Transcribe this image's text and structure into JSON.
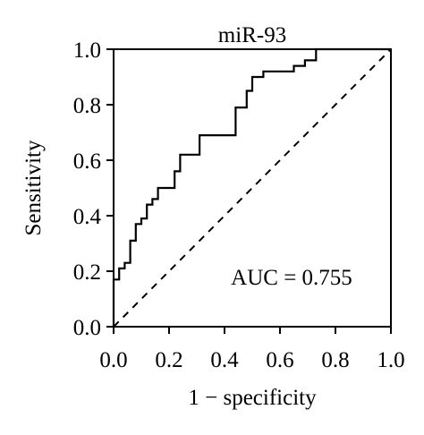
{
  "chart_data": {
    "type": "line",
    "title": "miR-93",
    "xlabel": "1 − specificity",
    "ylabel": "Sensitivity",
    "xlim": [
      0,
      1
    ],
    "ylim": [
      0,
      1
    ],
    "x_ticks": [
      "0.0",
      "0.2",
      "0.4",
      "0.6",
      "0.8",
      "1.0"
    ],
    "y_ticks": [
      "0.0",
      "0.2",
      "0.4",
      "0.6",
      "0.8",
      "1.0"
    ],
    "grid": false,
    "annotation": "AUC = 0.755",
    "series": [
      {
        "line_style": "solid",
        "color": "#000000",
        "points": [
          [
            0.0,
            0.0
          ],
          [
            0.0,
            0.17
          ],
          [
            0.02,
            0.17
          ],
          [
            0.02,
            0.21
          ],
          [
            0.04,
            0.21
          ],
          [
            0.04,
            0.23
          ],
          [
            0.06,
            0.23
          ],
          [
            0.06,
            0.31
          ],
          [
            0.08,
            0.31
          ],
          [
            0.08,
            0.37
          ],
          [
            0.1,
            0.37
          ],
          [
            0.1,
            0.39
          ],
          [
            0.12,
            0.39
          ],
          [
            0.12,
            0.44
          ],
          [
            0.14,
            0.44
          ],
          [
            0.14,
            0.46
          ],
          [
            0.16,
            0.46
          ],
          [
            0.16,
            0.5
          ],
          [
            0.22,
            0.5
          ],
          [
            0.22,
            0.56
          ],
          [
            0.24,
            0.56
          ],
          [
            0.24,
            0.62
          ],
          [
            0.31,
            0.62
          ],
          [
            0.31,
            0.69
          ],
          [
            0.44,
            0.69
          ],
          [
            0.44,
            0.79
          ],
          [
            0.48,
            0.79
          ],
          [
            0.48,
            0.85
          ],
          [
            0.5,
            0.85
          ],
          [
            0.5,
            0.9
          ],
          [
            0.54,
            0.9
          ],
          [
            0.54,
            0.92
          ],
          [
            0.65,
            0.92
          ],
          [
            0.65,
            0.94
          ],
          [
            0.69,
            0.94
          ],
          [
            0.69,
            0.96
          ],
          [
            0.73,
            0.96
          ],
          [
            0.73,
            1.0
          ],
          [
            1.0,
            1.0
          ]
        ]
      },
      {
        "line_style": "dashed",
        "color": "#000000",
        "points": [
          [
            0,
            0
          ],
          [
            1,
            1
          ]
        ]
      }
    ]
  }
}
